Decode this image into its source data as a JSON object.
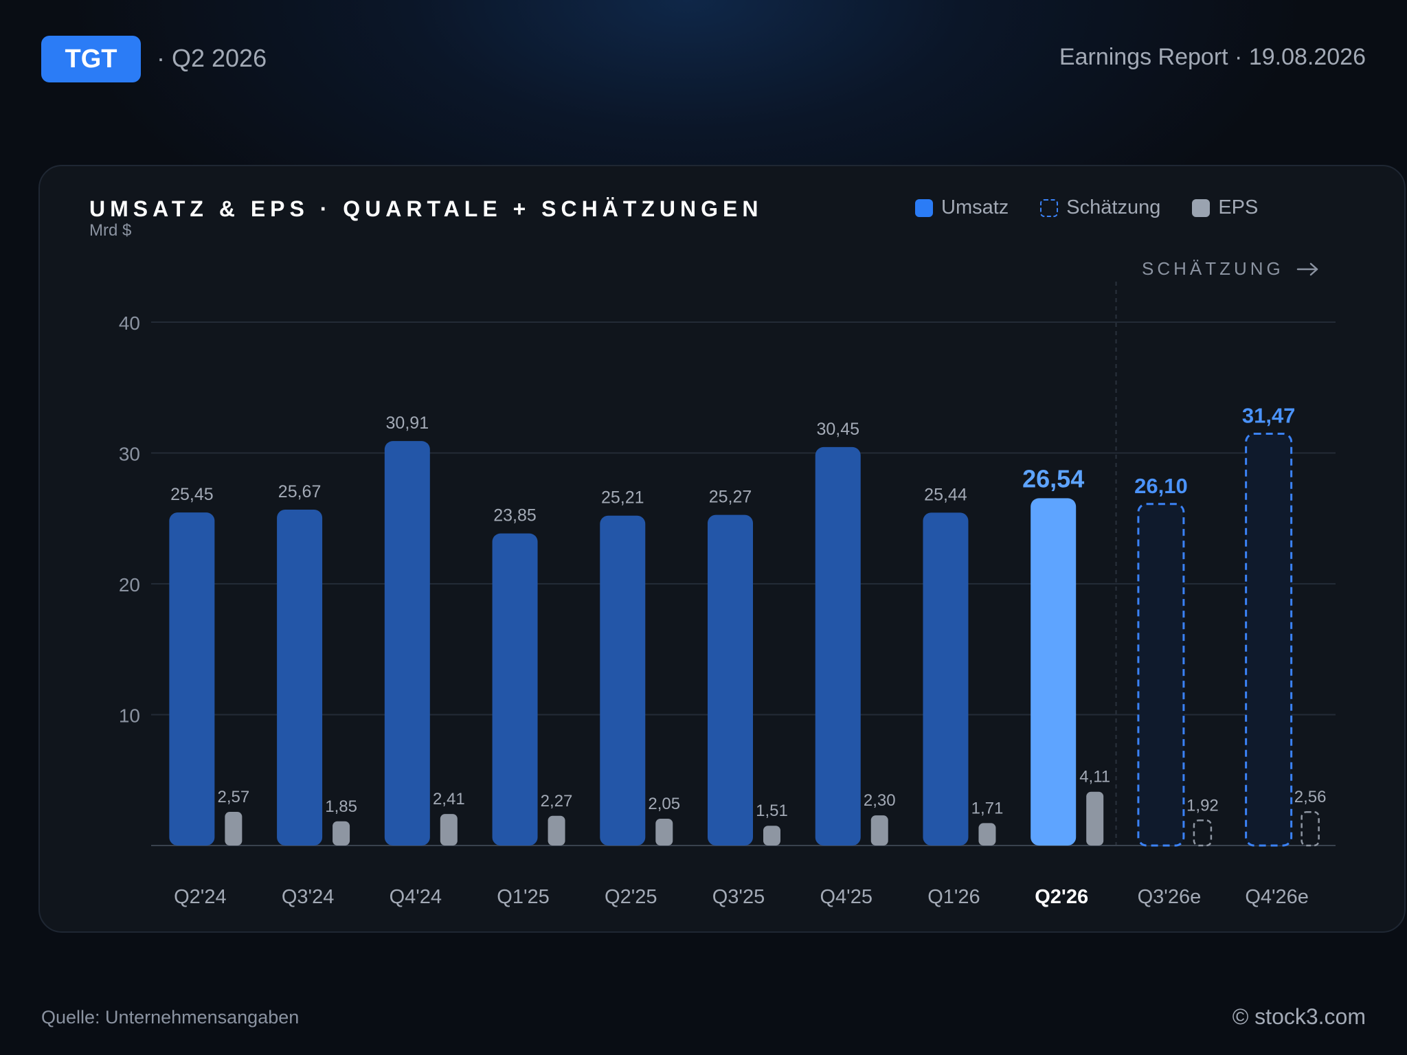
{
  "header": {
    "ticker": "TGT",
    "quarter": "· Q2 2026",
    "report": "Earnings Report · 19.08.2026"
  },
  "card": {
    "title": "UMSATZ & EPS · QUARTALE + SCHÄTZUNGEN",
    "unit": "Mrd $",
    "estimate_marker": "SCHÄTZUNG",
    "legend": [
      {
        "label": "Umsatz",
        "color": "#2b7cf6",
        "style": "solid"
      },
      {
        "label": "Schätzung",
        "color": "#3b82f6",
        "style": "dashed"
      },
      {
        "label": "EPS",
        "color": "#9aa3b0",
        "style": "solid"
      }
    ]
  },
  "chart_data": {
    "type": "bar",
    "categories": [
      "Q2'24",
      "Q3'24",
      "Q4'24",
      "Q1'25",
      "Q2'25",
      "Q3'25",
      "Q4'25",
      "Q1'26",
      "Q2'26",
      "Q3'26e",
      "Q4'26e"
    ],
    "series": [
      {
        "name": "Umsatz",
        "values": [
          25.45,
          25.67,
          30.91,
          23.85,
          25.21,
          25.27,
          30.45,
          25.44,
          26.54,
          26.1,
          31.47
        ],
        "labels": [
          "25,45",
          "25,67",
          "30,91",
          "23,85",
          "25,21",
          "25,27",
          "30,45",
          "25,44",
          "26,54",
          "26,10",
          "31,47"
        ]
      },
      {
        "name": "EPS",
        "values": [
          2.57,
          1.85,
          2.41,
          2.27,
          2.05,
          1.51,
          2.3,
          1.71,
          4.11,
          1.92,
          2.56
        ],
        "labels": [
          "2,57",
          "1,85",
          "2,41",
          "2,27",
          "2,05",
          "1,51",
          "2,30",
          "1,71",
          "4,11",
          "1,92",
          "2,56"
        ]
      }
    ],
    "highlight_index": 8,
    "estimate_from_index": 9,
    "ylim": [
      0,
      40
    ],
    "yticks": [
      10,
      20,
      30,
      40
    ],
    "grid": true,
    "legend_position": "top-right",
    "colors": {
      "revenue": "#2356a8",
      "revenue_highlight": "#5ea4ff",
      "estimate": "#3b82f6",
      "eps": "#8e96a2",
      "eps_estimate": "#8e96a2"
    }
  },
  "footer": {
    "source": "Quelle: Unternehmensangaben",
    "brand": "© stock3.com"
  }
}
